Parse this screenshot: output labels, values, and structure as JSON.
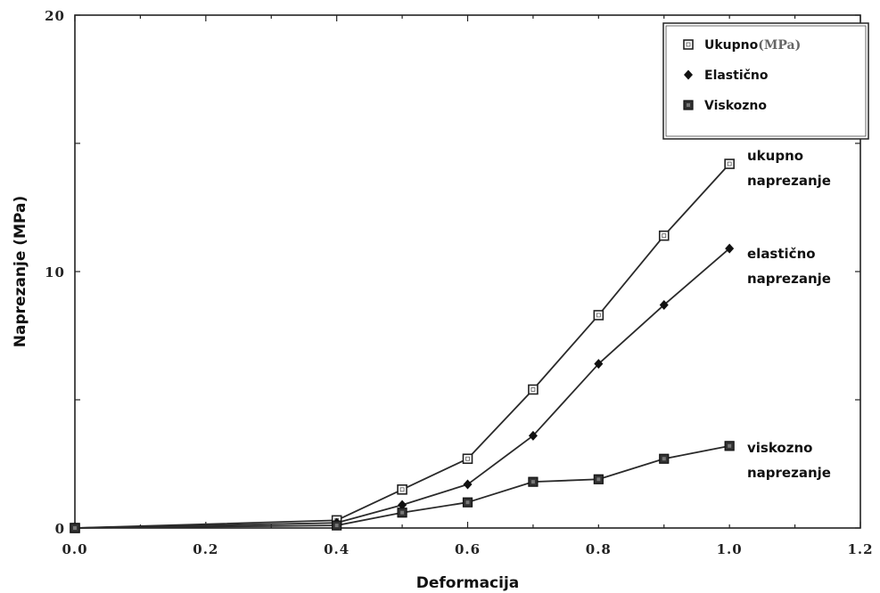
{
  "chart_data": {
    "type": "line",
    "title": "",
    "xlabel": "Deformacija",
    "ylabel": "Naprezanje (MPa)",
    "xlim": [
      0.0,
      1.2
    ],
    "ylim": [
      0,
      20
    ],
    "x_ticks": [
      "0.0",
      "0.2",
      "0.4",
      "0.6",
      "0.8",
      "1.0",
      "1.2"
    ],
    "y_ticks": [
      "0",
      "10",
      "20"
    ],
    "grid": false,
    "legend": {
      "position": "top-right",
      "entries": [
        {
          "label": "Ukupno",
          "unit": "(MPa)",
          "marker": "open-square"
        },
        {
          "label": "Elastično",
          "unit": "",
          "marker": "diamond"
        },
        {
          "label": "Viskozno",
          "unit": "",
          "marker": "filled-square"
        }
      ]
    },
    "series": [
      {
        "name": "Ukupno",
        "marker": "open-square",
        "x": [
          0.0,
          0.4,
          0.5,
          0.6,
          0.7,
          0.8,
          0.9,
          1.0
        ],
        "y": [
          0.0,
          0.3,
          1.5,
          2.7,
          5.4,
          8.3,
          11.4,
          14.2
        ]
      },
      {
        "name": "Elastično",
        "marker": "diamond",
        "x": [
          0.0,
          0.4,
          0.5,
          0.6,
          0.7,
          0.8,
          0.9,
          1.0
        ],
        "y": [
          0.0,
          0.2,
          0.9,
          1.7,
          3.6,
          6.4,
          8.7,
          10.9
        ]
      },
      {
        "name": "Viskozno",
        "marker": "filled-square",
        "x": [
          0.0,
          0.4,
          0.5,
          0.6,
          0.7,
          0.8,
          0.9,
          1.0
        ],
        "y": [
          0.0,
          0.1,
          0.6,
          1.0,
          1.8,
          1.9,
          2.7,
          3.2
        ]
      }
    ],
    "annotations": [
      {
        "lines": [
          "ukupno",
          "naprezanje"
        ]
      },
      {
        "lines": [
          "elastično",
          "naprezanje"
        ]
      },
      {
        "lines": [
          "viskozno",
          "naprezanje"
        ]
      }
    ]
  }
}
